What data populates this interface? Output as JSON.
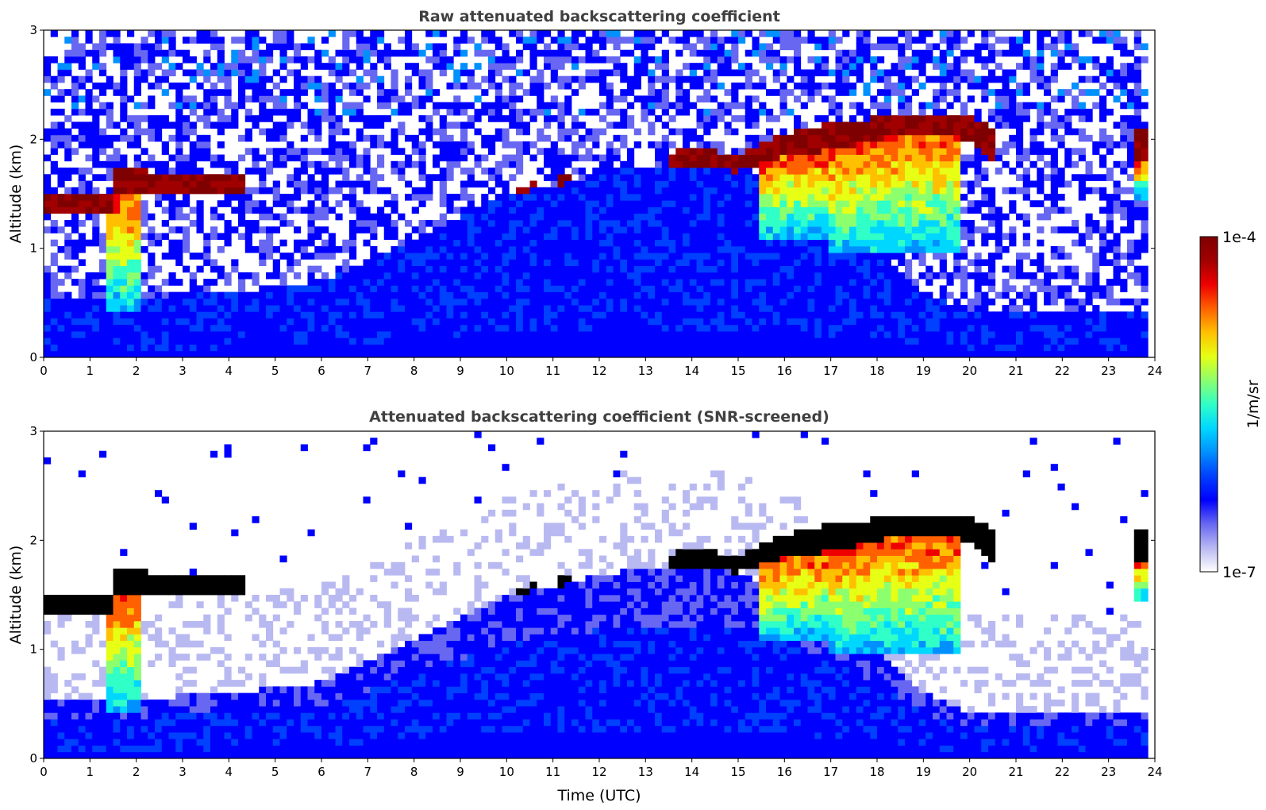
{
  "colors": {
    "colormap": [
      "#ffffff",
      "#b9b9f2",
      "#6767f2",
      "#0000ff",
      "#0040ff",
      "#0090ff",
      "#00d7ff",
      "#30ffc8",
      "#8cff6e",
      "#e6ff14",
      "#ffc000",
      "#ff6000",
      "#ee0000",
      "#a00000",
      "#7f0000"
    ],
    "screened_core": "#000000",
    "title_text": "#404040"
  },
  "colorbar": {
    "label": "1/m/sr",
    "max_label": "1e-4",
    "min_label": "1e-7",
    "scale": "log"
  },
  "chart_data": [
    {
      "type": "heatmap",
      "title": "Raw attenuated backscattering coefficient",
      "xlabel": "",
      "ylabel": "Altitude (km)",
      "xlim": [
        0,
        24
      ],
      "ylim": [
        0,
        3
      ],
      "xticks": [
        "0",
        "1",
        "2",
        "3",
        "4",
        "5",
        "6",
        "7",
        "8",
        "9",
        "10",
        "11",
        "12",
        "13",
        "14",
        "15",
        "16",
        "17",
        "18",
        "19",
        "20",
        "21",
        "22",
        "23",
        "24"
      ],
      "yticks": [
        "0",
        "1",
        "2",
        "3"
      ],
      "data_end_hour": 23.8,
      "boundary_layer_top_km": [
        [
          0,
          0.55
        ],
        [
          2,
          0.55
        ],
        [
          4,
          0.6
        ],
        [
          6,
          0.7
        ],
        [
          7,
          0.9
        ],
        [
          8,
          1.1
        ],
        [
          9,
          1.3
        ],
        [
          10,
          1.5
        ],
        [
          11,
          1.58
        ],
        [
          12,
          1.68
        ],
        [
          13,
          1.75
        ],
        [
          14,
          1.75
        ],
        [
          15,
          1.7
        ],
        [
          16,
          1.55
        ],
        [
          17,
          1.3
        ],
        [
          18,
          1.0
        ],
        [
          19,
          0.6
        ],
        [
          20,
          0.4
        ],
        [
          21,
          0.4
        ],
        [
          23.8,
          0.4
        ]
      ],
      "cloud_base_km": [
        [
          0,
          1.35
        ],
        [
          1.5,
          1.35
        ],
        [
          1.55,
          1.5
        ],
        [
          4.35,
          1.5
        ],
        [
          10.2,
          1.5
        ],
        [
          10.7,
          1.55
        ],
        [
          11.3,
          1.6
        ],
        [
          13.5,
          1.75
        ],
        [
          14.5,
          1.75
        ],
        [
          15,
          1.7
        ],
        [
          16,
          1.85
        ],
        [
          17,
          1.9
        ],
        [
          18,
          2.0
        ],
        [
          19,
          2.05
        ],
        [
          20,
          2.0
        ],
        [
          20.5,
          1.8
        ]
      ],
      "cloud_top_km": [
        [
          0,
          1.5
        ],
        [
          1.5,
          1.5
        ],
        [
          1.55,
          1.72
        ],
        [
          4.35,
          1.68
        ],
        [
          10.2,
          1.55
        ],
        [
          10.7,
          1.62
        ],
        [
          11.3,
          1.7
        ],
        [
          13.5,
          1.85
        ],
        [
          14,
          1.95
        ],
        [
          14.5,
          1.9
        ],
        [
          15,
          1.85
        ],
        [
          16,
          2.05
        ],
        [
          17,
          2.15
        ],
        [
          18,
          2.2
        ],
        [
          19,
          2.25
        ],
        [
          20,
          2.2
        ],
        [
          20.5,
          2.1
        ]
      ],
      "cloud_segments_hours": [
        [
          0,
          1.5
        ],
        [
          1.5,
          4.35
        ],
        [
          10.2,
          10.7
        ],
        [
          11.1,
          11.4
        ],
        [
          13.5,
          20.5
        ],
        [
          23.5,
          23.8
        ]
      ],
      "precip_fallstreaks": [
        {
          "start": 1.4,
          "end": 2.1,
          "bottom_km": 0.4
        },
        {
          "start": 15.5,
          "end": 17.0,
          "bottom_km": 1.1
        },
        {
          "start": 17.0,
          "end": 19.8,
          "bottom_km": 0.95
        },
        {
          "start": 23.5,
          "end": 23.8,
          "bottom_km": 1.45
        }
      ]
    },
    {
      "type": "heatmap",
      "title": "Attenuated backscattering coefficient (SNR-screened)",
      "xlabel": "Time (UTC)",
      "ylabel": "Altitude (km)",
      "xlim": [
        0,
        24
      ],
      "ylim": [
        0,
        3
      ],
      "xticks": [
        "0",
        "1",
        "2",
        "3",
        "4",
        "5",
        "6",
        "7",
        "8",
        "9",
        "10",
        "11",
        "12",
        "13",
        "14",
        "15",
        "16",
        "17",
        "18",
        "19",
        "20",
        "21",
        "22",
        "23",
        "24"
      ],
      "yticks": [
        "0",
        "1",
        "2",
        "3"
      ],
      "data_end_hour": 23.8,
      "screened_above_cloud": true
    }
  ]
}
